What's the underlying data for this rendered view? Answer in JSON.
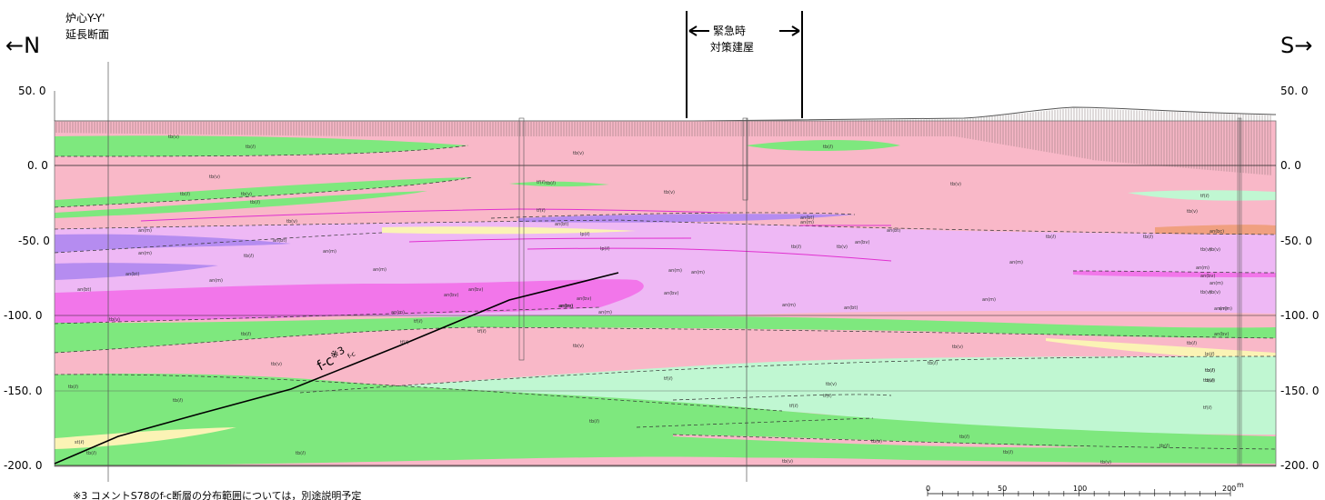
{
  "direction_north": "←N",
  "direction_south": "S→",
  "section_label_line1": "炉心Y-Y'",
  "section_label_line2": "延長断面",
  "building_label_line1": "緊急時",
  "building_label_line2": "対策建屋",
  "elevation_ticks": [
    "50. 0",
    "0. 0",
    "-50. 0",
    "-100. 0",
    "-150. 0",
    "-200. 0"
  ],
  "fault_label": "f-c",
  "fault_note_mark": "※3",
  "fault_subscript": "f-c",
  "footnote": "※3 コメントS78のf-c断層の分布範囲については，別途説明予定",
  "scale_ticks": [
    "0",
    "50",
    "100",
    "200"
  ],
  "scale_unit": "m",
  "colors": {
    "tb_v": "#f9b8c8",
    "tb_l": "#7ee87e",
    "tf_l": "#c0f7d2",
    "an_m": "#eeb8f5",
    "an_bv": "#f276ea",
    "an_bt": "#b58cf0",
    "lp_l": "#fbf3b5",
    "an_bc": "#f0a080"
  },
  "unit_labels": [
    "tb(v)",
    "tb(ℓ)",
    "tb(v)",
    "tb(ℓ)",
    "tb(v)",
    "tb(ℓ)",
    "tb(v)",
    "an(m)",
    "an(m)",
    "an(bt)",
    "an(m)",
    "tb(ℓ)",
    "an(bt)",
    "an(bt)",
    "an(m)",
    "an(m)",
    "an(bv)",
    "an(bv)",
    "an(m)",
    "tb(ℓ)",
    "tb(v)",
    "tf(ℓ)",
    "tb(v)",
    "lp(ℓ)",
    "tb(ℓ)",
    "st(ℓ)",
    "tb(ℓ)",
    "tb(ℓ)",
    "tb(ℓ)",
    "tb(v)",
    "tf(ℓ)",
    "tf(ℓ)",
    "tb(ℓ)",
    "tb(v)",
    "tf(ℓ)",
    "an(bt)",
    "lp(ℓ)",
    "an(m)",
    "an(bv)",
    "an(bv)",
    "an(m)",
    "an(m)",
    "an(bv)",
    "an(m)",
    "an(m)",
    "tb(v)",
    "tf(ℓ)",
    "tb(ℓ)",
    "tb(ℓ)",
    "tb(v)",
    "tb(v)",
    "tb(ℓ)",
    "tb(v)",
    "tb(v)",
    "tf(ℓ)",
    "an(bt)",
    "an(bv)",
    "an(m)",
    "an(m)",
    "an(m)",
    "an(bt)",
    "tb(ℓ)",
    "tb(ℓ)",
    "tb(v)",
    "tf(ℓ)",
    "tb(v)",
    "tf(ℓ)",
    "tb(v)",
    "tb(ℓ)",
    "tb(v)",
    "tb(v)",
    "tb(ℓ)",
    "tb(v)",
    "tf(ℓ)",
    "an(bt)",
    "tb(ℓ)",
    "an(m)",
    "an(bc)",
    "tb(v)",
    "an(m)",
    "an(bv)",
    "an(m)",
    "tb(v)",
    "an(m)",
    "an(bv)",
    "tb(ℓ)",
    "lp(ℓ)",
    "tb(ℓ)",
    "tb(v)",
    "tf(ℓ)",
    "tb(ℓ)",
    "tb(ℓ)",
    "tb(ℓ)"
  ]
}
